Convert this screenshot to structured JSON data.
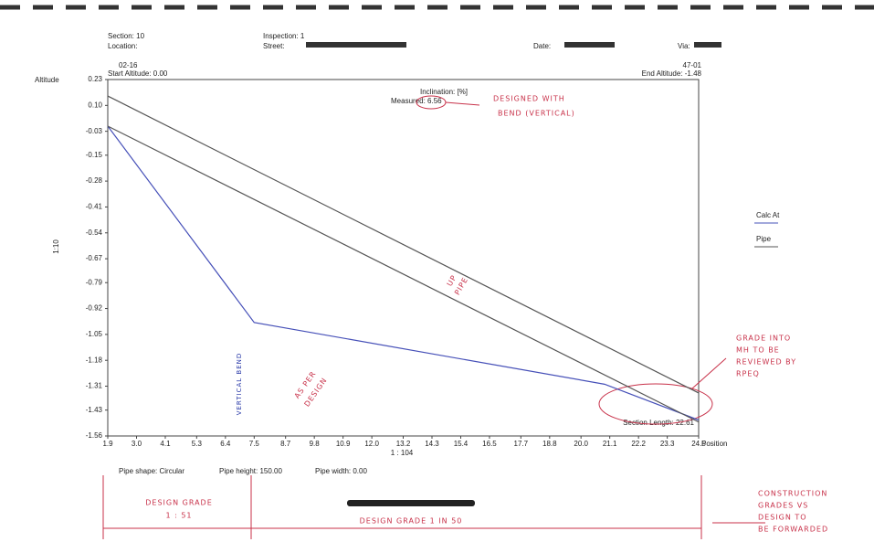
{
  "header": {
    "section": "Section: 10",
    "inspection": "Inspection: 1",
    "location": "Location:",
    "street": "Street:",
    "date": "Date:",
    "via": "Via:",
    "start_node": "02-16",
    "start_altitude": "Start Altitude: 0.00",
    "end_node": "47-01",
    "end_altitude": "End Altitude: -1.48"
  },
  "chart_data": {
    "type": "line",
    "y_label": "Altitude",
    "x_label": "Position",
    "x_scale": "1 : 104",
    "y_scale": "1:10",
    "inclination": "Inclination: [%]",
    "measured": "Measured: 6.56",
    "section_length": "Section Length: 22.61",
    "xlim": [
      1.9,
      24.5
    ],
    "ylim": [
      -1.56,
      0.23
    ],
    "xticks": [
      1.9,
      {
        "value": 3,
        "label": "3.0"
      },
      4.1,
      5.3,
      6.4,
      7.5,
      8.7,
      9.8,
      10.9,
      {
        "value": 12,
        "label": "12.0"
      },
      13.2,
      14.3,
      15.4,
      16.5,
      17.7,
      18.8,
      {
        "value": 20,
        "label": "20.0"
      },
      21.1,
      22.2,
      23.3,
      24.5
    ],
    "yticks": [
      0.23,
      {
        "value": 0.1,
        "label": "0.10"
      },
      -0.03,
      -0.15,
      -0.28,
      -0.41,
      -0.54,
      -0.67,
      -0.79,
      -0.92,
      -1.05,
      -1.18,
      -1.31,
      -1.43,
      -1.56
    ],
    "series": [
      {
        "name": "Calc At",
        "color": "#4650b8",
        "x": [
          1.9,
          7.5,
          20.9,
          24.5
        ],
        "values": [
          -0.004,
          -0.99,
          -1.3,
          -1.48
        ]
      },
      {
        "name": "Pipe",
        "color": "#555555",
        "x": [
          1.9,
          24.5
        ],
        "values": [
          0.147,
          -1.344
        ]
      },
      {
        "color": "#555555",
        "x": [
          1.9,
          24.5
        ],
        "values": [
          -0.004,
          -1.49
        ]
      }
    ]
  },
  "footer": {
    "pipe_shape": "Pipe shape: Circular",
    "pipe_height": "Pipe height: 150.00",
    "pipe_width": "Pipe width: 0.00"
  },
  "annotations": {
    "designed_with_bend_1": "DESIGNED WITH",
    "designed_with_bend_2": "BEND (VERTICAL)",
    "up_pipe_1": "UP",
    "up_pipe_2": "PIPE",
    "vertical_bend": "VERTICAL BEND",
    "as_per_design_1": "AS PER",
    "as_per_design_2": "DESIGN",
    "grade_review_1": "GRADE INTO",
    "grade_review_2": "MH TO BE",
    "grade_review_3": "REVIEWED BY",
    "grade_review_4": "RPEQ",
    "design_grade_a_1": "DESIGN GRADE",
    "design_grade_a_2": "1 : 51",
    "design_grade_b": "DESIGN  GRADE  1  IN  50",
    "construction_1": "CONSTRUCTION",
    "construction_2": "GRADES VS",
    "construction_3": "DESIGN TO",
    "construction_4": "BE FORWARDED"
  }
}
